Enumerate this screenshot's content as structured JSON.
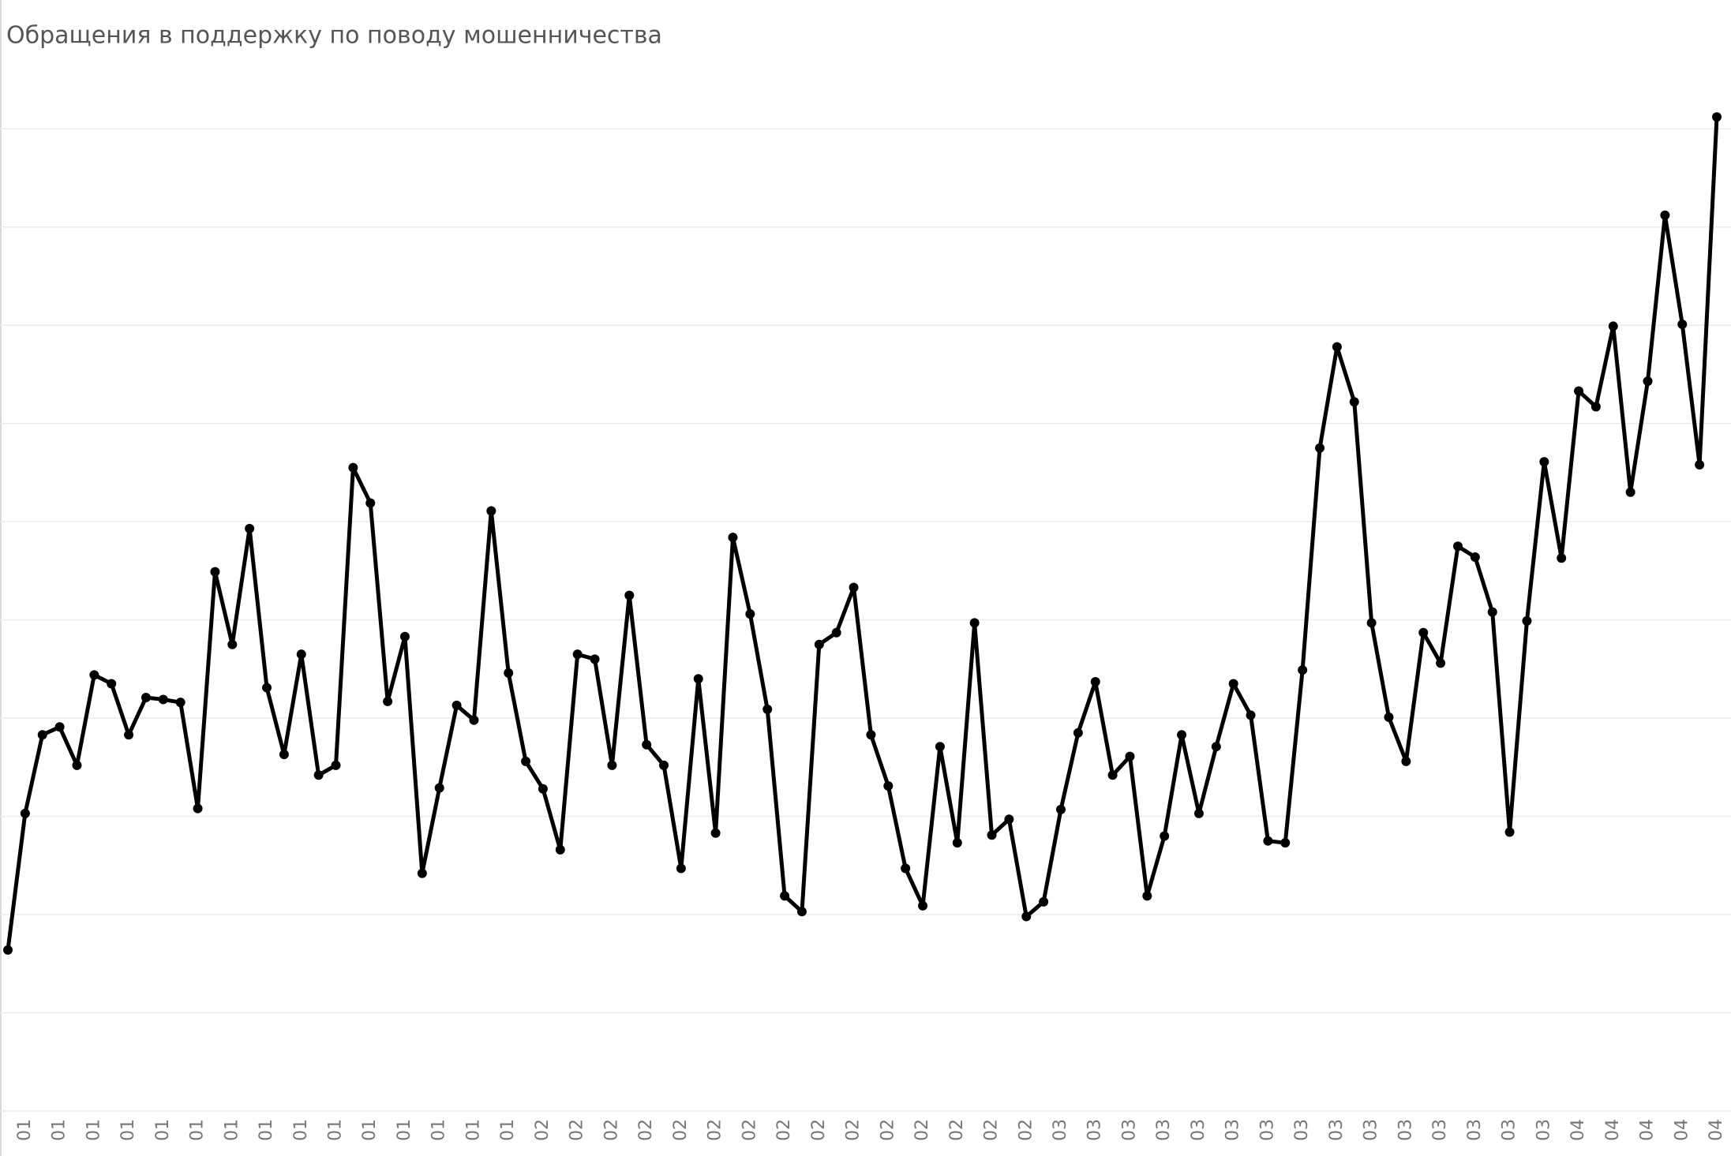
{
  "chart_data": {
    "type": "line",
    "title": "Обращения в поддержку по поводу мошенничества",
    "categories": [
      null,
      "01",
      null,
      "01",
      null,
      "01",
      null,
      "01",
      null,
      "01",
      null,
      "01",
      null,
      "01",
      null,
      "01",
      null,
      "01",
      null,
      "01",
      null,
      "01",
      null,
      "01",
      null,
      "01",
      null,
      "01",
      null,
      "01",
      null,
      "02",
      null,
      "02",
      null,
      "02",
      null,
      "02",
      null,
      "02",
      null,
      "02",
      null,
      "02",
      null,
      "02",
      null,
      "02",
      null,
      "02",
      null,
      "02",
      null,
      "02",
      null,
      "02",
      null,
      "02",
      null,
      "02",
      null,
      "03",
      null,
      "03",
      null,
      "03",
      null,
      "03",
      null,
      "03",
      null,
      "03",
      null,
      "03",
      null,
      "03",
      null,
      "03",
      null,
      "03",
      null,
      "03",
      null,
      "03",
      null,
      "03",
      null,
      "03",
      null,
      "03",
      null,
      "04",
      null,
      "04",
      null,
      "04",
      null,
      "04",
      null,
      "04"
    ],
    "series": [
      {
        "color": "#000000",
        "values": [
          1.64,
          3.03,
          3.83,
          3.91,
          3.52,
          4.44,
          4.35,
          3.83,
          4.21,
          4.19,
          4.16,
          3.08,
          5.49,
          4.75,
          5.93,
          4.31,
          3.63,
          4.65,
          3.42,
          3.52,
          6.55,
          6.19,
          4.17,
          4.83,
          2.42,
          3.29,
          4.13,
          3.98,
          6.11,
          4.46,
          3.56,
          3.28,
          2.66,
          4.65,
          4.6,
          3.52,
          5.25,
          3.73,
          3.52,
          2.47,
          4.4,
          2.83,
          5.84,
          5.06,
          4.09,
          2.19,
          2.03,
          4.75,
          4.87,
          5.33,
          3.83,
          3.31,
          2.47,
          2.09,
          3.71,
          2.73,
          4.97,
          2.81,
          2.97,
          1.98,
          2.13,
          3.07,
          3.85,
          4.37,
          3.42,
          3.61,
          2.19,
          2.8,
          3.83,
          3.03,
          3.71,
          4.35,
          4.03,
          2.75,
          2.73,
          4.49,
          6.75,
          7.78,
          7.22,
          4.97,
          4.01,
          3.56,
          4.87,
          4.56,
          5.75,
          5.64,
          5.08,
          2.84,
          4.99,
          6.61,
          5.63,
          7.33,
          7.17,
          7.99,
          6.3,
          7.43,
          9.12,
          8.01,
          6.58,
          10.12
        ]
      }
    ],
    "ylim": [
      0,
      10.5
    ],
    "yticks": [
      0,
      1,
      2,
      3,
      4,
      5,
      6,
      7,
      8,
      9,
      10
    ],
    "grid": true
  }
}
